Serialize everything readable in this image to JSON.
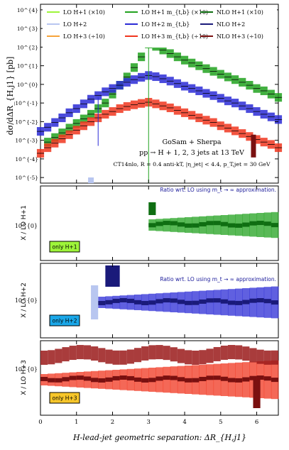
{
  "chart_data": {
    "type": "line",
    "main": {
      "ylabel": "dσ/dΔR_{H,j1} [pb]",
      "ytick_labels": [
        "10^{-5}",
        "10^{-4}",
        "10^{-3}",
        "10^{-2}",
        "10^{-1}",
        "10^{0}",
        "10^{1}",
        "10^{2}",
        "10^{3}",
        "10^{4}"
      ],
      "ylim_log10": [
        -5.3,
        4.3
      ],
      "legend": {
        "placement": "top",
        "entries": [
          {
            "label": "LO H+1 (×10)",
            "color": "#9ef53a"
          },
          {
            "label": "LO H+1 m_{t,b} (×10)",
            "color": "#21a21f"
          },
          {
            "label": "NLO H+1 (×10)",
            "color": "#0f6e12"
          },
          {
            "label": "LO H+2",
            "color": "#b8c6f0"
          },
          {
            "label": "LO H+2 m_{t,b}",
            "color": "#2b2bd6"
          },
          {
            "label": "NLO H+2",
            "color": "#1a1a7a"
          },
          {
            "label": "LO H+3 (÷10)",
            "color": "#f7a33a"
          },
          {
            "label": "LO H+3 m_{t,b} (÷10)",
            "color": "#f0361f"
          },
          {
            "label": "NLO H+3 (÷10)",
            "color": "#7a1010"
          }
        ]
      },
      "annotations": [
        "GoSam + Sherpa",
        "pp → H + 1, 2, 3 jets at 13 TeV",
        "CT14nlo, R = 0.4 anti-kT, |η_jet| < 4.4, p_T,jet = 30 GeV"
      ],
      "series": [
        {
          "name": "H+1 (×10)",
          "color": "#21a21f",
          "x": [
            3.0,
            3.2,
            3.4,
            3.6,
            3.8,
            4.0,
            4.2,
            4.4,
            4.6,
            4.8,
            5.0,
            5.2,
            5.4,
            5.6,
            5.8,
            6.0,
            6.2,
            6.4,
            6.6
          ],
          "y": [
            150,
            110,
            70,
            45,
            30,
            20,
            14,
            10,
            7,
            5,
            3.5,
            2.5,
            1.8,
            1.3,
            0.9,
            0.6,
            0.45,
            0.3,
            0.2
          ],
          "left_x": [
            0.2,
            0.4,
            0.6,
            0.8,
            1.0,
            1.2,
            1.4,
            1.6,
            1.8,
            2.0,
            2.2,
            2.4,
            2.6,
            2.8,
            3.0
          ],
          "left_y": [
            0.0008,
            0.0014,
            0.0025,
            0.0045,
            0.008,
            0.014,
            0.025,
            0.05,
            0.1,
            0.3,
            0.9,
            2.5,
            8,
            30,
            150
          ]
        },
        {
          "name": "H+2",
          "color": "#2b2bd6",
          "x": [
            0.0,
            0.2,
            0.4,
            0.6,
            0.8,
            1.0,
            1.2,
            1.4,
            1.6,
            1.8,
            2.0,
            2.2,
            2.4,
            2.6,
            2.8,
            3.0,
            3.2,
            3.4,
            3.6,
            3.8,
            4.0,
            4.2,
            4.4,
            4.6,
            4.8,
            5.0,
            5.2,
            5.4,
            5.6,
            5.8,
            6.0,
            6.2,
            6.4,
            6.6
          ],
          "y": [
            0.003,
            0.005,
            0.009,
            0.016,
            0.03,
            0.05,
            0.09,
            0.16,
            0.25,
            0.4,
            0.6,
            0.9,
            1.3,
            1.8,
            2.4,
            3.0,
            2.6,
            2.0,
            1.5,
            1.1,
            0.8,
            0.6,
            0.45,
            0.33,
            0.25,
            0.18,
            0.13,
            0.1,
            0.07,
            0.05,
            0.035,
            0.025,
            0.018,
            0.013
          ]
        },
        {
          "name": "H+3 (÷10)",
          "color": "#f0361f",
          "x": [
            0.0,
            0.2,
            0.4,
            0.6,
            0.8,
            1.0,
            1.2,
            1.4,
            1.6,
            1.8,
            2.0,
            2.2,
            2.4,
            2.6,
            2.8,
            3.0,
            3.2,
            3.4,
            3.6,
            3.8,
            4.0,
            4.2,
            4.4,
            4.6,
            4.8,
            5.0,
            5.2,
            5.4,
            5.6,
            5.8,
            6.0,
            6.2,
            6.4,
            6.6
          ],
          "y": [
            0.0002,
            0.0004,
            0.0007,
            0.0012,
            0.002,
            0.0035,
            0.006,
            0.01,
            0.016,
            0.025,
            0.035,
            0.05,
            0.065,
            0.08,
            0.095,
            0.11,
            0.09,
            0.07,
            0.055,
            0.04,
            0.03,
            0.022,
            0.016,
            0.012,
            0.009,
            0.006,
            0.0045,
            0.0032,
            0.0023,
            0.0016,
            0.0011,
            0.0008,
            0.0006,
            0.0004
          ]
        }
      ]
    },
    "ratio_panels": [
      {
        "ylabel": "X / LO H+1",
        "tick": "10^{0}",
        "note": "Ratio wrt. LO using m_t → ∞ approximation.",
        "badge": "only H+1",
        "badge_color": "#9ef53a"
      },
      {
        "ylabel": "X / LO H+2",
        "tick": "10^{0}",
        "note": "Ratio wrt. LO using m_t → ∞ approximation.",
        "badge": "only H+2",
        "badge_color": "#1aa7e8"
      },
      {
        "ylabel": "X / LO H+3",
        "tick": "10^{0}",
        "badge": "only H+3",
        "badge_color": "#f7c62a"
      }
    ],
    "xlabel": "H-lead-jet geometric separation: ΔR_{H,j1}",
    "xtick_labels": [
      "0",
      "1",
      "2",
      "3",
      "4",
      "5",
      "6"
    ],
    "xlim": [
      0,
      6.6
    ]
  }
}
